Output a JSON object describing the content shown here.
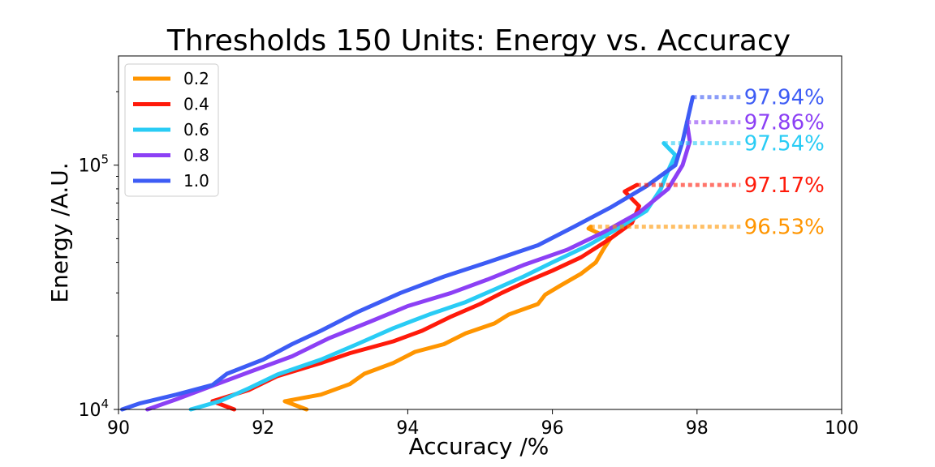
{
  "chart_data": {
    "type": "line",
    "title": "Thresholds 150 Units: Energy vs. Accuracy",
    "xlabel": "Accuracy /%",
    "ylabel": "Energy /A.U.",
    "xlim": [
      90,
      100
    ],
    "ylim": [
      10000,
      280000
    ],
    "yscale": "log",
    "xticks": [
      "90",
      "92",
      "94",
      "96",
      "98",
      "100"
    ],
    "yticks": [
      {
        "base": "10",
        "exp": "4",
        "value": 10000
      },
      {
        "base": "10",
        "exp": "5",
        "value": 100000
      }
    ],
    "grid": false,
    "legend_position": "top-left",
    "series": [
      {
        "name": "0.2",
        "color": "#ff9500",
        "final_label": "96.53%",
        "final_accuracy": 96.53,
        "points": [
          [
            92.6,
            10000
          ],
          [
            92.3,
            10800
          ],
          [
            92.8,
            11500
          ],
          [
            93.2,
            12700
          ],
          [
            93.4,
            14000
          ],
          [
            93.8,
            15500
          ],
          [
            94.1,
            17200
          ],
          [
            94.5,
            18500
          ],
          [
            94.8,
            20500
          ],
          [
            95.2,
            22500
          ],
          [
            95.4,
            24500
          ],
          [
            95.8,
            27000
          ],
          [
            95.9,
            29500
          ],
          [
            96.1,
            32000
          ],
          [
            96.4,
            36000
          ],
          [
            96.6,
            40000
          ],
          [
            96.7,
            45000
          ],
          [
            96.8,
            50000
          ],
          [
            96.5,
            55000
          ],
          [
            96.53,
            56000
          ]
        ]
      },
      {
        "name": "0.4",
        "color": "#ff1a0a",
        "final_label": "97.17%",
        "final_accuracy": 97.17,
        "points": [
          [
            91.6,
            10000
          ],
          [
            91.3,
            10800
          ],
          [
            91.8,
            12000
          ],
          [
            92.2,
            13700
          ],
          [
            92.8,
            15500
          ],
          [
            93.2,
            17000
          ],
          [
            93.8,
            19000
          ],
          [
            94.2,
            21000
          ],
          [
            94.6,
            24000
          ],
          [
            95.0,
            27000
          ],
          [
            95.3,
            30000
          ],
          [
            95.6,
            33000
          ],
          [
            96.0,
            37000
          ],
          [
            96.4,
            42000
          ],
          [
            96.8,
            50000
          ],
          [
            97.1,
            58000
          ],
          [
            97.2,
            68000
          ],
          [
            97.0,
            78000
          ],
          [
            97.17,
            83000
          ]
        ]
      },
      {
        "name": "0.6",
        "color": "#29ccf5",
        "final_label": "97.54%",
        "final_accuracy": 97.54,
        "points": [
          [
            91.0,
            10000
          ],
          [
            91.4,
            10800
          ],
          [
            91.8,
            12200
          ],
          [
            92.2,
            13900
          ],
          [
            92.8,
            16000
          ],
          [
            93.3,
            18500
          ],
          [
            93.8,
            21500
          ],
          [
            94.3,
            24500
          ],
          [
            94.8,
            27500
          ],
          [
            95.2,
            31000
          ],
          [
            95.6,
            35000
          ],
          [
            96.0,
            40000
          ],
          [
            96.5,
            47000
          ],
          [
            96.9,
            55000
          ],
          [
            97.3,
            65000
          ],
          [
            97.5,
            80000
          ],
          [
            97.6,
            95000
          ],
          [
            97.7,
            110000
          ],
          [
            97.54,
            123000
          ]
        ]
      },
      {
        "name": "0.8",
        "color": "#8c40f5",
        "final_label": "97.86%",
        "final_accuracy": 97.86,
        "points": [
          [
            90.4,
            10000
          ],
          [
            90.8,
            11000
          ],
          [
            91.3,
            12500
          ],
          [
            91.8,
            14200
          ],
          [
            92.4,
            16500
          ],
          [
            92.9,
            19500
          ],
          [
            93.5,
            23000
          ],
          [
            94.0,
            26500
          ],
          [
            94.6,
            30000
          ],
          [
            95.1,
            34000
          ],
          [
            95.6,
            39000
          ],
          [
            96.2,
            45000
          ],
          [
            96.7,
            53000
          ],
          [
            97.2,
            64000
          ],
          [
            97.6,
            80000
          ],
          [
            97.8,
            100000
          ],
          [
            97.9,
            125000
          ],
          [
            97.86,
            150000
          ]
        ]
      },
      {
        "name": "1.0",
        "color": "#3d5cf5",
        "final_label": "97.94%",
        "final_accuracy": 97.94,
        "points": [
          [
            90.05,
            10000
          ],
          [
            90.3,
            10600
          ],
          [
            90.8,
            11500
          ],
          [
            91.3,
            12600
          ],
          [
            91.5,
            14000
          ],
          [
            92.0,
            16000
          ],
          [
            92.4,
            18500
          ],
          [
            92.8,
            21000
          ],
          [
            93.3,
            25000
          ],
          [
            93.9,
            30000
          ],
          [
            94.5,
            35000
          ],
          [
            95.1,
            40000
          ],
          [
            95.8,
            47000
          ],
          [
            96.3,
            56000
          ],
          [
            96.8,
            67000
          ],
          [
            97.3,
            82000
          ],
          [
            97.7,
            100000
          ],
          [
            97.8,
            125000
          ],
          [
            97.94,
            190000
          ]
        ]
      }
    ]
  }
}
